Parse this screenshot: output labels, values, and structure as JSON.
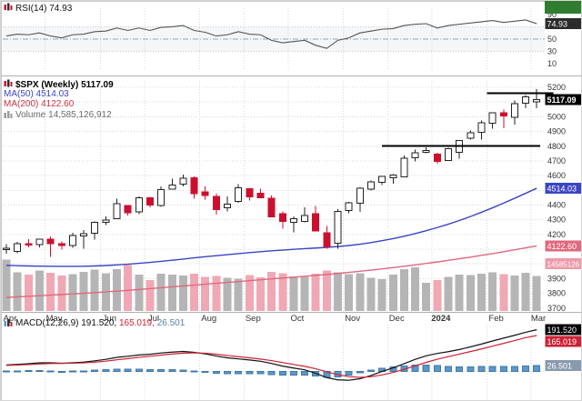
{
  "legends": {
    "rsi": {
      "label": "RSI(14)",
      "value": "74.93"
    },
    "price": {
      "symbol": "$SPX (Weekly)",
      "last": "5117.09",
      "ma50": "MA(50) 4514.03",
      "ma200": "MA(200) 4122.60",
      "volume": "Volume 14,585,126,912"
    },
    "macd": {
      "label": "MACD(12,26,9)",
      "v1": "191.520,",
      "v2": "165.019,",
      "v3": "26.501"
    }
  },
  "axes": {
    "rsi_ticks": [
      90,
      50,
      30,
      10
    ],
    "rsi_boxes": [
      {
        "text": "74.93",
        "value": 74.93,
        "bg": "#2b2b2b"
      }
    ],
    "price_ticks": [
      5200,
      5000,
      4900,
      4800,
      4700,
      4600,
      4400,
      4300,
      4200,
      3900,
      3800,
      3700
    ],
    "price_boxes": [
      {
        "text": "5117.09",
        "value": 5117.09,
        "bg": "#000000",
        "bold": true
      },
      {
        "text": "4514.03",
        "value": 4514.03,
        "bg": "#3a45c4"
      },
      {
        "text": "4122.60",
        "value": 4122.6,
        "bg": "#e0697d"
      },
      {
        "text": "14585126",
        "value": 4000,
        "bg": "#ef9aa9",
        "fs": 8
      }
    ],
    "macd_boxes": [
      {
        "text": "191.520",
        "value": 191.52,
        "bg": "#000000"
      },
      {
        "text": "165.019",
        "value": 165.019,
        "bg": "#cc2233"
      },
      {
        "text": "26.501",
        "value": 26.501,
        "bg": "#8a9aae"
      }
    ]
  },
  "colors": {
    "up_candle": "#ffffff",
    "up_border": "#222222",
    "down_candle": "#cc0f2f",
    "ma50": "#3a45c4",
    "ma200": "#e0697d",
    "vol_up": "#b5b5b5",
    "vol_down": "#f0a8b4",
    "macd_hist": "#5b97c8",
    "macd_hist_border": "#3f7aa8",
    "macd_line": "#111111",
    "signal_line": "#cc2233",
    "rsi_line": "#555555",
    "grid": "#d9d9d9",
    "axis_text": "#333333",
    "trendline": "#000000",
    "corner": "#2f7d2f",
    "rsi_band": "rgba(120,140,170,0.08)"
  },
  "chart_data": {
    "type": "candlestick",
    "symbol": "$SPX",
    "timeframe": "Weekly",
    "last_price": 5117.09,
    "price_range": [
      3700,
      5200
    ],
    "volume_current": "14,585,126,912",
    "rsi_current": 74.93,
    "macd_current": {
      "macd": 191.52,
      "signal": 165.019,
      "histogram": 26.501
    },
    "months": [
      {
        "label": "Apr",
        "week": 0
      },
      {
        "label": "May",
        "week": 4
      },
      {
        "label": "Jun",
        "week": 9
      },
      {
        "label": "Jul",
        "week": 13
      },
      {
        "label": "Aug",
        "week": 18
      },
      {
        "label": "Sep",
        "week": 22
      },
      {
        "label": "Oct",
        "week": 26
      },
      {
        "label": "Nov",
        "week": 31
      },
      {
        "label": "Dec",
        "week": 35
      },
      {
        "label": "2024",
        "week": 39
      },
      {
        "label": "Feb",
        "week": 44
      },
      {
        "label": "Mar",
        "week": 48
      }
    ],
    "trendlines": [
      {
        "price": 5160,
        "from_week": 44,
        "to_week": 49.5
      },
      {
        "price": 4802,
        "from_week": 34.5,
        "to_week": 48.3
      }
    ],
    "ohlc": [
      [
        4102,
        4133,
        4069,
        4105
      ],
      [
        4085,
        4150,
        4072,
        4138
      ],
      [
        4137,
        4169,
        4114,
        4134
      ],
      [
        4132,
        4170,
        4113,
        4169
      ],
      [
        4167,
        4186,
        4048,
        4136
      ],
      [
        4136,
        4154,
        4098,
        4124
      ],
      [
        4126,
        4212,
        4109,
        4192
      ],
      [
        4190,
        4231,
        4103,
        4205
      ],
      [
        4209,
        4290,
        4166,
        4282
      ],
      [
        4282,
        4322,
        4263,
        4299
      ],
      [
        4308,
        4443,
        4304,
        4410
      ],
      [
        4396,
        4400,
        4328,
        4348
      ],
      [
        4354,
        4458,
        4337,
        4450
      ],
      [
        4450,
        4456,
        4385,
        4399
      ],
      [
        4398,
        4527,
        4389,
        4505
      ],
      [
        4508,
        4578,
        4504,
        4536
      ],
      [
        4543,
        4607,
        4528,
        4582
      ],
      [
        4584,
        4594,
        4444,
        4478
      ],
      [
        4491,
        4527,
        4436,
        4464
      ],
      [
        4458,
        4478,
        4335,
        4370
      ],
      [
        4380,
        4458,
        4356,
        4406
      ],
      [
        4426,
        4541,
        4414,
        4516
      ],
      [
        4510,
        4514,
        4430,
        4457
      ],
      [
        4480,
        4511,
        4447,
        4450
      ],
      [
        4445,
        4466,
        4316,
        4320
      ],
      [
        4341,
        4357,
        4238,
        4288
      ],
      [
        4284,
        4324,
        4216,
        4308
      ],
      [
        4289,
        4385,
        4283,
        4328
      ],
      [
        4342,
        4393,
        4223,
        4224
      ],
      [
        4210,
        4259,
        4104,
        4117
      ],
      [
        4139,
        4373,
        4103,
        4358
      ],
      [
        4364,
        4421,
        4343,
        4415
      ],
      [
        4412,
        4520,
        4353,
        4514
      ],
      [
        4508,
        4568,
        4499,
        4559
      ],
      [
        4554,
        4599,
        4537,
        4594
      ],
      [
        4586,
        4609,
        4546,
        4604
      ],
      [
        4593,
        4738,
        4593,
        4719
      ],
      [
        4721,
        4778,
        4697,
        4754
      ],
      [
        4758,
        4793,
        4751,
        4770
      ],
      [
        4745,
        4754,
        4682,
        4697
      ],
      [
        4703,
        4790,
        4699,
        4784
      ],
      [
        4760,
        4842,
        4714,
        4840
      ],
      [
        4854,
        4906,
        4844,
        4891
      ],
      [
        4893,
        4975,
        4846,
        4959
      ],
      [
        4957,
        5030,
        4920,
        5027
      ],
      [
        5026,
        5048,
        4921,
        5006
      ],
      [
        4996,
        5111,
        4946,
        5089
      ],
      [
        5093,
        5149,
        5058,
        5137
      ],
      [
        5101,
        5189,
        5057,
        5117
      ]
    ],
    "volume_billions": [
      21.5,
      16.2,
      15.1,
      16.8,
      15.9,
      14.7,
      15.3,
      16.4,
      17.2,
      15.8,
      17.5,
      19.2,
      15.1,
      12.9,
      15.6,
      15.2,
      14.8,
      15.5,
      14.2,
      14.6,
      13.8,
      13.5,
      14.9,
      14.1,
      16.3,
      15.7,
      14.4,
      14.2,
      15.6,
      16.8,
      16.2,
      15.4,
      15.8,
      13.9,
      13.2,
      15.1,
      17.4,
      18.2,
      11.8,
      12.9,
      14.3,
      15.2,
      14.9,
      15.6,
      16.1,
      15.3,
      14.8,
      15.9,
      14.6
    ],
    "ma50": [
      3990,
      3988,
      3986,
      3985,
      3984,
      3983,
      3983,
      3984,
      3986,
      3989,
      3993,
      3998,
      4004,
      4010,
      4017,
      4025,
      4033,
      4041,
      4049,
      4056,
      4063,
      4070,
      4077,
      4083,
      4089,
      4094,
      4099,
      4104,
      4108,
      4112,
      4118,
      4125,
      4134,
      4145,
      4158,
      4172,
      4188,
      4206,
      4226,
      4247,
      4270,
      4295,
      4322,
      4351,
      4381,
      4413,
      4446,
      4480,
      4514
    ],
    "ma200": [
      3772,
      3776,
      3780,
      3784,
      3788,
      3792,
      3796,
      3800,
      3805,
      3810,
      3815,
      3820,
      3826,
      3832,
      3838,
      3844,
      3850,
      3856,
      3862,
      3868,
      3874,
      3880,
      3886,
      3892,
      3898,
      3904,
      3910,
      3916,
      3922,
      3928,
      3935,
      3942,
      3950,
      3958,
      3966,
      3975,
      3984,
      3993,
      4003,
      4013,
      4024,
      4035,
      4046,
      4058,
      4070,
      4083,
      4096,
      4109,
      4122.6
    ],
    "rsi": [
      55,
      58,
      57,
      60,
      55,
      52,
      57,
      58,
      62,
      63,
      68,
      64,
      68,
      64,
      69,
      70,
      72,
      64,
      61,
      55,
      57,
      62,
      58,
      57,
      48,
      44,
      46,
      48,
      40,
      35,
      48,
      52,
      60,
      63,
      66,
      67,
      72,
      74,
      75,
      68,
      72,
      74,
      76,
      78,
      80,
      77,
      79,
      81,
      74.93
    ],
    "macd_line": [
      30,
      33,
      36,
      40,
      40,
      38,
      40,
      43,
      49,
      56,
      65,
      70,
      76,
      79,
      85,
      89,
      92,
      88,
      81,
      71,
      63,
      58,
      53,
      47,
      37,
      25,
      16,
      8,
      -8,
      -28,
      -38,
      -40,
      -33,
      -18,
      0,
      17,
      36,
      56,
      72,
      83,
      91,
      101,
      113,
      126,
      140,
      153,
      166,
      180,
      191.52
    ],
    "signal_line": [
      28,
      29.8,
      32,
      34.8,
      36.6,
      37.1,
      38.1,
      39.8,
      43,
      47.6,
      53.7,
      59.4,
      65.2,
      70,
      75.3,
      80.1,
      84.3,
      85.6,
      84,
      79.5,
      73.7,
      68.2,
      62.9,
      57.3,
      50.2,
      41.4,
      32.5,
      23.9,
      12.7,
      -1.5,
      -14.3,
      -23.3,
      -26.7,
      -23.7,
      -15.4,
      -4.1,
      9.9,
      26,
      42.1,
      56.4,
      68.5,
      79.9,
      91.5,
      103.6,
      116.3,
      129.1,
      142,
      155.3,
      165.02
    ]
  }
}
